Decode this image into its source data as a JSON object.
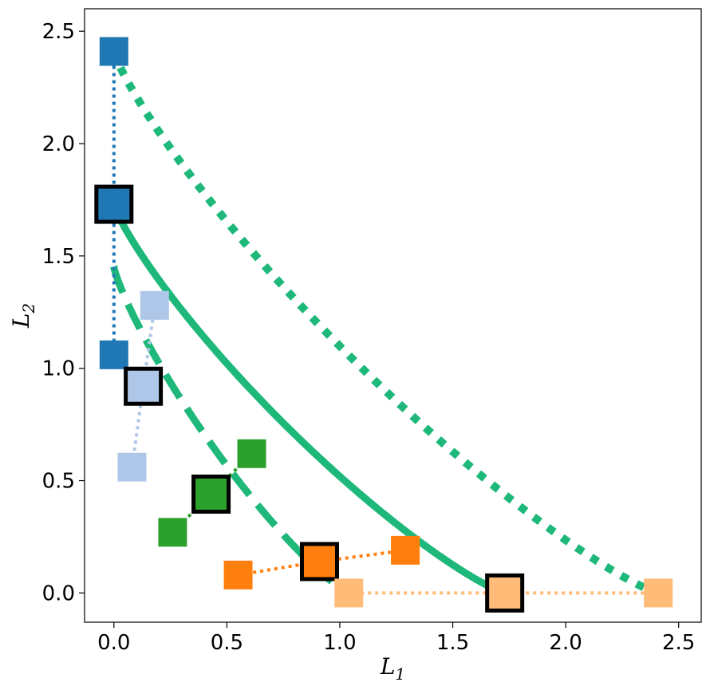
{
  "chart_data": {
    "type": "scatter",
    "xlabel": "L",
    "xlabel_sub": "1",
    "ylabel": "L",
    "ylabel_sub": "2",
    "xlim": [
      -0.13,
      2.6
    ],
    "ylim": [
      -0.13,
      2.6
    ],
    "x_ticks": [
      "0.0",
      "0.5",
      "1.0",
      "1.5",
      "2.0",
      "2.5"
    ],
    "y_ticks": [
      "0.0",
      "0.5",
      "1.0",
      "1.5",
      "2.0",
      "2.5"
    ],
    "grid": false,
    "curves": [
      {
        "style": "dashed",
        "color": "#1db87a",
        "c": 0.3
      },
      {
        "style": "solid",
        "color": "#1db87a",
        "c": 0.75
      },
      {
        "style": "dotted",
        "color": "#1db87a",
        "c": 1.2
      }
    ],
    "series": [
      {
        "color": "#1f77b4",
        "points": [
          [
            0.0,
            2.41
          ],
          [
            0.0,
            1.73
          ],
          [
            0.0,
            1.06
          ]
        ],
        "highlight": 1
      },
      {
        "color": "#aec7e8",
        "points": [
          [
            0.18,
            1.28
          ],
          [
            0.13,
            0.92
          ],
          [
            0.08,
            0.56
          ]
        ],
        "highlight": 1
      },
      {
        "color": "#2ca02c",
        "points": [
          [
            0.61,
            0.62
          ],
          [
            0.43,
            0.44
          ],
          [
            0.26,
            0.27
          ]
        ],
        "highlight": 1
      },
      {
        "color": "#ff7f0e",
        "points": [
          [
            1.29,
            0.19
          ],
          [
            0.91,
            0.14
          ],
          [
            0.55,
            0.08
          ]
        ],
        "highlight": 1
      },
      {
        "color": "#ffbb78",
        "points": [
          [
            2.41,
            0.0
          ],
          [
            1.73,
            0.0
          ],
          [
            1.04,
            0.0
          ]
        ],
        "highlight": 1
      }
    ]
  }
}
